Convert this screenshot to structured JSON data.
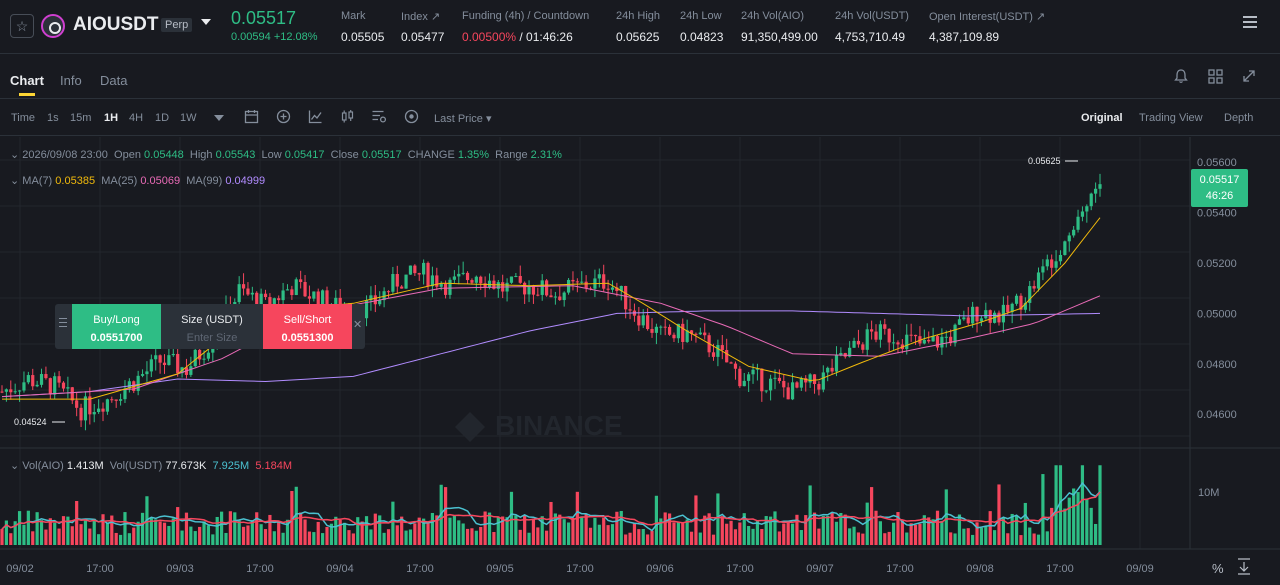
{
  "header": {
    "symbol": "AIOUSDT",
    "contract_badge": "Perp",
    "last_price": "0.05517",
    "change": "0.00594 +12.08%",
    "stats": [
      {
        "label": "Mark",
        "value": "0.05505"
      },
      {
        "label": "Index ↗",
        "value": "0.05477"
      },
      {
        "label": "Funding (4h) / Countdown",
        "value_funding": "0.00500%",
        "value_countdown": " / 01:46:26"
      },
      {
        "label": "24h High",
        "value": "0.05625"
      },
      {
        "label": "24h Low",
        "value": "0.04823"
      },
      {
        "label": "24h Vol(AIO)",
        "value": "91,350,499.00"
      },
      {
        "label": "24h Vol(USDT)",
        "value": "4,753,710.49"
      },
      {
        "label": "Open Interest(USDT) ↗",
        "value": "4,387,109.89"
      }
    ]
  },
  "tabs": [
    "Chart",
    "Info",
    "Data"
  ],
  "toolbar": {
    "intervals": [
      "Time",
      "1s",
      "15m",
      "1H",
      "4H",
      "1D",
      "1W"
    ],
    "selected_interval": "1H",
    "price_type": "Last Price",
    "views": [
      "Original",
      "Trading View",
      "Depth"
    ],
    "selected_view": "Original"
  },
  "legend": {
    "datetime": "2026/09/08 23:00",
    "open_label": "Open",
    "open": "0.05448",
    "high_label": "High",
    "high": "0.05543",
    "low_label": "Low",
    "low": "0.05417",
    "close_label": "Close",
    "close": "0.05517",
    "change_label": "CHANGE",
    "change": "1.35%",
    "range_label": "Range",
    "range": "2.31%",
    "ma7_label": "MA(7)",
    "ma7": "0.05385",
    "ma25_label": "MA(25)",
    "ma25": "0.05069",
    "ma99_label": "MA(99)",
    "ma99": "0.04999",
    "vol_label": "Vol(AIO)",
    "vol_aio": "1.413M",
    "volusdt_label": "Vol(USDT)",
    "vol_usdt": "77.673K",
    "vol_ma1": "7.925M",
    "vol_ma2": "5.184M"
  },
  "price_tag": {
    "price": "0.05517",
    "countdown": "46:26"
  },
  "order_panel": {
    "buy_label": "Buy/Long",
    "buy_price": "0.0551700",
    "size_label": "Size (USDT)",
    "size_placeholder": "Enter Size",
    "sell_label": "Sell/Short",
    "sell_price": "0.0551300"
  },
  "colors": {
    "up": "#2ebd85",
    "down": "#f6465d",
    "ma7": "#f0b90b",
    "ma25": "#e86ab6",
    "ma99": "#b18cff",
    "accent": "#fcd535"
  },
  "chart_data": {
    "type": "candlestick",
    "interval": "1H",
    "y_ticks": [
      "0.05600",
      "0.05400",
      "0.05200",
      "0.05000",
      "0.04800",
      "0.04600"
    ],
    "ylim": [
      0.0447,
      0.057
    ],
    "x_ticks": [
      "09/02",
      "17:00",
      "09/03",
      "17:00",
      "09/04",
      "17:00",
      "09/05",
      "17:00",
      "09/06",
      "17:00",
      "09/07",
      "17:00",
      "09/08",
      "17:00",
      "09/09"
    ],
    "marked_high": "0.05625",
    "marked_low": "0.04524",
    "vol_axis_label": "10M",
    "close_path": [
      [
        0,
        0.0469
      ],
      [
        6,
        0.0474
      ],
      [
        12,
        0.0471
      ],
      [
        18,
        0.0462
      ],
      [
        24,
        0.0466
      ],
      [
        30,
        0.0473
      ],
      [
        36,
        0.0481
      ],
      [
        42,
        0.0478
      ],
      [
        48,
        0.049
      ],
      [
        54,
        0.0509
      ],
      [
        60,
        0.0503
      ],
      [
        66,
        0.0511
      ],
      [
        72,
        0.0506
      ],
      [
        78,
        0.0501
      ],
      [
        84,
        0.0503
      ],
      [
        90,
        0.0513
      ],
      [
        96,
        0.0516
      ],
      [
        102,
        0.0511
      ],
      [
        108,
        0.0516
      ],
      [
        114,
        0.051
      ],
      [
        120,
        0.0511
      ],
      [
        126,
        0.0508
      ],
      [
        132,
        0.0511
      ],
      [
        138,
        0.0513
      ],
      [
        144,
        0.0501
      ],
      [
        150,
        0.0491
      ],
      [
        156,
        0.0492
      ],
      [
        162,
        0.0486
      ],
      [
        168,
        0.0475
      ],
      [
        174,
        0.0473
      ],
      [
        180,
        0.0469
      ],
      [
        186,
        0.0473
      ],
      [
        192,
        0.0483
      ],
      [
        198,
        0.0492
      ],
      [
        204,
        0.0491
      ],
      [
        210,
        0.0487
      ],
      [
        216,
        0.0491
      ],
      [
        222,
        0.0501
      ],
      [
        228,
        0.0499
      ],
      [
        234,
        0.0509
      ],
      [
        240,
        0.0525
      ],
      [
        246,
        0.0541
      ],
      [
        250,
        0.0552
      ]
    ],
    "ma7": [
      [
        0,
        0.0466
      ],
      [
        20,
        0.0466
      ],
      [
        40,
        0.0476
      ],
      [
        50,
        0.049
      ],
      [
        60,
        0.0501
      ],
      [
        80,
        0.0504
      ],
      [
        100,
        0.0512
      ],
      [
        120,
        0.0511
      ],
      [
        138,
        0.0512
      ],
      [
        145,
        0.0505
      ],
      [
        155,
        0.0494
      ],
      [
        170,
        0.0479
      ],
      [
        185,
        0.0473
      ],
      [
        195,
        0.048
      ],
      [
        210,
        0.049
      ],
      [
        222,
        0.0496
      ],
      [
        232,
        0.0502
      ],
      [
        242,
        0.052
      ],
      [
        250,
        0.0538
      ]
    ],
    "ma25": [
      [
        0,
        0.0467
      ],
      [
        30,
        0.047
      ],
      [
        50,
        0.0482
      ],
      [
        70,
        0.05
      ],
      [
        100,
        0.051
      ],
      [
        130,
        0.0511
      ],
      [
        150,
        0.0504
      ],
      [
        165,
        0.0495
      ],
      [
        180,
        0.0484
      ],
      [
        200,
        0.0483
      ],
      [
        220,
        0.049
      ],
      [
        235,
        0.0496
      ],
      [
        250,
        0.0507
      ]
    ],
    "ma99": [
      [
        0,
        0.0467
      ],
      [
        20,
        0.0469
      ],
      [
        40,
        0.0474
      ],
      [
        60,
        0.0473
      ],
      [
        80,
        0.0475
      ],
      [
        100,
        0.0484
      ],
      [
        120,
        0.0493
      ],
      [
        140,
        0.05
      ],
      [
        160,
        0.0501
      ],
      [
        180,
        0.0501
      ],
      [
        200,
        0.05
      ],
      [
        220,
        0.0499
      ],
      [
        250,
        0.05
      ]
    ]
  }
}
